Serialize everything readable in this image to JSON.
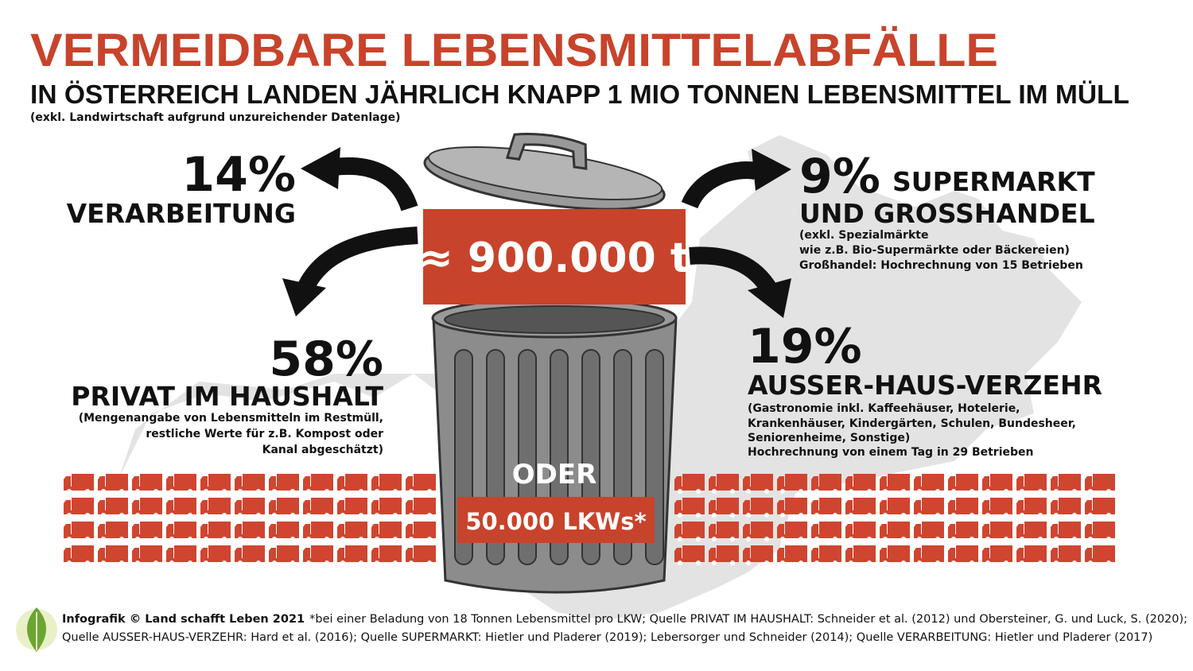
{
  "header": {
    "title": "VERMEIDBARE LEBENSMITTELABFÄLLE",
    "subtitle": "IN ÖSTERREICH LANDEN JÄHRLICH KNAPP 1 MIO TONNEN LEBENSMITTEL IM MÜLL",
    "note": "(exkl. Landwirtschaft aufgrund unzureichender Datenlage)"
  },
  "center": {
    "amount": "≈ 900.000 t",
    "or": "ODER",
    "trucks": "50.000 LKWs*"
  },
  "segments": [
    {
      "percent": "14%",
      "label": [
        "VERARBEITUNG"
      ]
    },
    {
      "percent": "9%",
      "label": [
        "SUPERMARKT",
        "UND GROSSHANDEL"
      ],
      "note": [
        "(exkl. Spezialmärkte",
        "wie z.B. Bio-Supermärkte oder Bäckereien)",
        "Großhandel: Hochrechnung von 15 Betrieben"
      ]
    },
    {
      "percent": "58%",
      "label": [
        "PRIVAT IM HAUSHALT"
      ],
      "note": [
        "(Mengenangabe von Lebensmitteln im Restmüll,",
        "restliche Werte für z.B. Kompost oder",
        "Kanal abgeschätzt)"
      ]
    },
    {
      "percent": "19%",
      "label": [
        "AUSSER-HAUS-VERZEHR"
      ],
      "note": [
        "(Gastronomie inkl. Kaffeehäuser, Hotelerie,",
        "Krankenhäuser, Kindergärten, Schulen, Bundesheer,",
        "Seniorenheime, Sonstige)",
        "Hochrechnung von einem Tag in 29 Betrieben"
      ]
    }
  ],
  "footer": {
    "credit": "Infografik © Land schafft Leben 2021",
    "lines": [
      "*bei einer Beladung von 18 Tonnen Lebensmittel pro LKW; Quelle PRIVAT IM HAUSHALT: Schneider et al. (2012) und Obersteiner, G. und Luck, S. (2020);",
      "Quelle AUSSER-HAUS-VERZEHR: Hard et al. (2016); Quelle SUPERMARKT: Hietler und Pladerer (2019); Lebersorger und Schneider (2014); Quelle VERARBEITUNG: Hietler und Pladerer (2017)"
    ]
  }
}
